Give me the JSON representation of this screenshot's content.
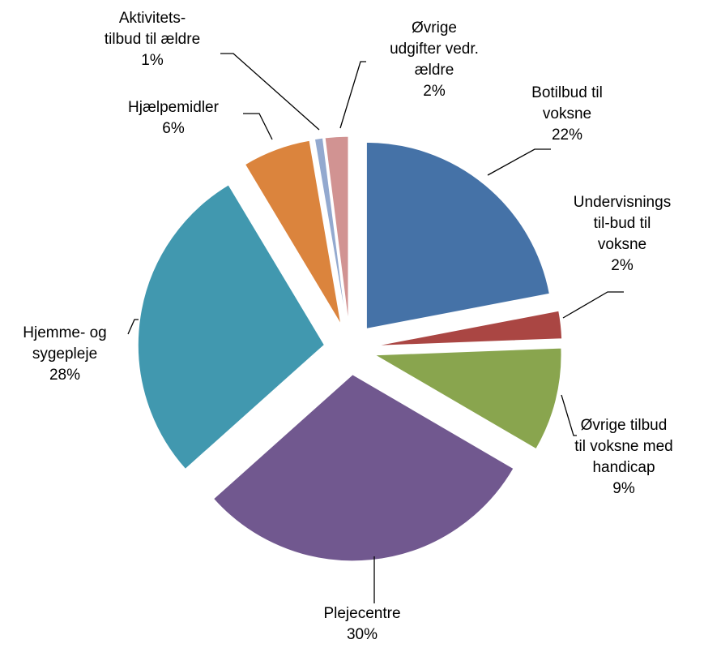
{
  "chart_data": {
    "type": "pie",
    "exploded": true,
    "start": "top (12 o'clock), clockwise",
    "slices": [
      {
        "label_lines": [
          "Botilbud til",
          "voksne"
        ],
        "percent_label": "22%",
        "value": 22,
        "color": "#4572A7"
      },
      {
        "label_lines": [
          "Undervisnings",
          "til-bud til",
          "voksne"
        ],
        "percent_label": "2%",
        "value": 2.4,
        "color": "#AA4643"
      },
      {
        "label_lines": [
          "Øvrige tilbud",
          "til voksne med",
          "handicap"
        ],
        "percent_label": "9%",
        "value": 9,
        "color": "#89A54E"
      },
      {
        "label_lines": [
          "Plejecentre"
        ],
        "percent_label": "30%",
        "value": 30,
        "color": "#71588F"
      },
      {
        "label_lines": [
          "Hjemme- og",
          "sygepleje"
        ],
        "percent_label": "28%",
        "value": 28,
        "color": "#4198AF"
      },
      {
        "label_lines": [
          "Hjælpemidler"
        ],
        "percent_label": "6%",
        "value": 5.9,
        "color": "#DB843D"
      },
      {
        "label_lines": [
          "Aktivitets-",
          "tilbud til ældre"
        ],
        "percent_label": "1%",
        "value": 0.7,
        "color": "#93A9CF"
      },
      {
        "label_lines": [
          "Øvrige",
          "udgifter vedr.",
          "ældre"
        ],
        "percent_label": "2%",
        "value": 2.0,
        "color": "#D19392"
      }
    ]
  }
}
